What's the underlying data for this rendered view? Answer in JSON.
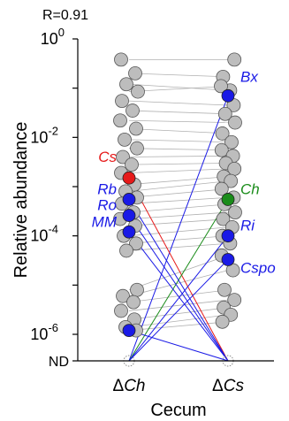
{
  "chart_data": {
    "type": "scatter",
    "annotation_top": "R=0.91",
    "ylabel": "Relative abundance",
    "xlabel": "Cecum",
    "yscale": "log",
    "ylim": [
      1e-07,
      1.0
    ],
    "nd_label": "ND",
    "y_ticks": [
      {
        "base": "10",
        "exp": "0",
        "value": 1.0
      },
      {
        "base": "10",
        "exp": "-2",
        "value": 0.01
      },
      {
        "base": "10",
        "exp": "-4",
        "value": 0.0001
      },
      {
        "base": "10",
        "exp": "-6",
        "value": 1e-06
      }
    ],
    "categories": [
      {
        "prefix": "Δ",
        "italic": "Ch"
      },
      {
        "prefix": "Δ",
        "italic": "Cs"
      }
    ],
    "colors": {
      "gray_fill": "#bdbdbd",
      "gray_stroke": "#555555",
      "gray_line": "#b0b0b0",
      "blue": "#1a1ae6",
      "red": "#e61a1a",
      "green": "#1a8c1a",
      "nd_marker": "#888888"
    },
    "pairs": [
      [
        0.38,
        0.38
      ],
      [
        0.2,
        0.17
      ],
      [
        0.12,
        0.09
      ],
      [
        0.085,
        0.11
      ],
      [
        0.055,
        0.045
      ],
      [
        0.035,
        0.03
      ],
      [
        0.022,
        0.02
      ],
      [
        0.015,
        0.012
      ],
      [
        0.009,
        0.008
      ],
      [
        0.006,
        0.0055
      ],
      [
        0.004,
        0.0042
      ],
      [
        0.0028,
        0.003
      ],
      [
        0.0019,
        0.0023
      ],
      [
        0.0011,
        0.0016
      ],
      [
        0.0008,
        0.0013
      ],
      [
        0.0006,
        0.0009
      ],
      [
        0.00045,
        0.0006
      ],
      [
        0.0003,
        0.00044
      ],
      [
        0.00022,
        0.0003
      ],
      [
        0.00016,
        0.00022
      ],
      [
        0.0001,
        0.00015
      ],
      [
        7e-05,
        0.0001
      ],
      [
        5e-05,
        7e-05
      ],
      [
        8e-06,
        4e-05
      ],
      [
        6e-06,
        2e-05
      ],
      [
        4.5e-06,
        8e-06
      ],
      [
        3e-06,
        5e-06
      ],
      [
        2e-06,
        3.5e-06
      ],
      [
        1.4e-06,
        2.5e-06
      ],
      [
        1.2e-06,
        1.8e-06
      ]
    ],
    "highlighted": [
      {
        "label": "Bx",
        "color": "blue",
        "dCh": null,
        "dCs": 0.07,
        "label_side": "right"
      },
      {
        "label": "Cs",
        "color": "red",
        "dCh": 0.0015,
        "dCs": null,
        "label_side": "left"
      },
      {
        "label": "Ch",
        "color": "green",
        "dCh": null,
        "dCs": 0.00055,
        "label_side": "right"
      },
      {
        "label": "Rb",
        "color": "blue",
        "dCh": 0.00055,
        "dCs": null,
        "label_side": "left"
      },
      {
        "label": "Ro",
        "color": "blue",
        "dCh": 0.00026,
        "dCs": null,
        "label_side": "left"
      },
      {
        "label": "MM",
        "color": "blue",
        "dCh": 0.00012,
        "dCs": null,
        "label_side": "left"
      },
      {
        "label": "Ri",
        "color": "blue",
        "dCh": null,
        "dCs": 0.0001,
        "label_side": "right"
      },
      {
        "label": "Cspo",
        "color": "blue",
        "dCh": null,
        "dCs": 3.3e-05,
        "label_side": "right"
      },
      {
        "label": "",
        "color": "blue",
        "dCh": 1.2e-06,
        "dCs": null,
        "label_side": "left"
      }
    ]
  }
}
